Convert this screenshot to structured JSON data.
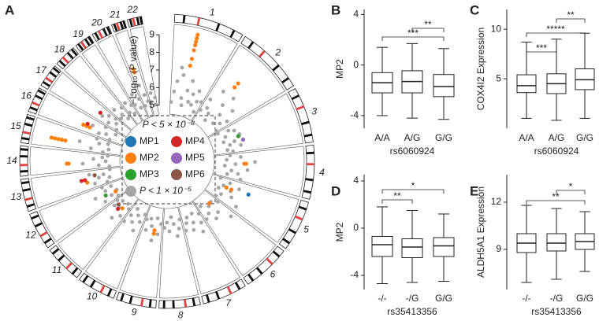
{
  "chart_data": [
    {
      "type": "circos",
      "panel": "A",
      "ylabel": "−Log₁₀ (P value)",
      "ylim": [
        4.5,
        9.5
      ],
      "yticks": [
        5,
        6,
        7,
        8,
        9
      ],
      "chromosomes": [
        "1",
        "2",
        "3",
        "4",
        "5",
        "6",
        "7",
        "8",
        "9",
        "10",
        "11",
        "12",
        "13",
        "14",
        "15",
        "16",
        "17",
        "18",
        "19",
        "20",
        "21",
        "22"
      ],
      "legend_title": "P < 5 × 10⁻⁸",
      "background": {
        "name": "P < 1 × 10⁻⁵",
        "color": "#a6a6a6",
        "values": [
          [
            5.2,
            5.8,
            6.4,
            7.2,
            6.8,
            5.5,
            5.1,
            6.0,
            6.6,
            5.4,
            5.9,
            5.3,
            6.2,
            5.6,
            5.0,
            5.7
          ],
          [
            5.3,
            6.1,
            5.6,
            6.9,
            5.4,
            5.0,
            6.3,
            7.0,
            5.8,
            5.2,
            6.5,
            5.5,
            5.9,
            5.1
          ],
          [
            5.1,
            5.7,
            6.0,
            5.4,
            6.2,
            5.2,
            5.8,
            5.5,
            6.1,
            5.3,
            5.6
          ],
          [
            5.4,
            6.0,
            5.2,
            6.8,
            5.7,
            5.1,
            6.4,
            5.5,
            5.9,
            5.3,
            6.1
          ],
          [
            5.0,
            5.6,
            6.2,
            5.3,
            5.8,
            5.1,
            6.0,
            5.4,
            6.5,
            5.2
          ],
          [
            5.5,
            6.6,
            5.2,
            5.9,
            5.3,
            6.1,
            5.6,
            5.0,
            5.8
          ],
          [
            5.3,
            5.8,
            6.3,
            5.1,
            5.6,
            6.0,
            5.2,
            5.5,
            5.9
          ],
          [
            5.2,
            5.7,
            6.1,
            5.4,
            5.0,
            5.8,
            5.3,
            5.6
          ],
          [
            5.4,
            6.0,
            5.1,
            6.4,
            5.6,
            5.2,
            5.9,
            5.3
          ],
          [
            5.1,
            5.6,
            6.2,
            5.3,
            5.8,
            5.0,
            5.5,
            6.0
          ],
          [
            5.3,
            5.9,
            5.1,
            6.3,
            5.6,
            5.2,
            5.7,
            5.4
          ],
          [
            5.2,
            6.0,
            5.5,
            5.1,
            6.4,
            5.7,
            5.3,
            5.8
          ],
          [
            5.4,
            6.1,
            5.2,
            5.8,
            5.5,
            6.3,
            5.1
          ],
          [
            5.1,
            5.7,
            6.6,
            5.3,
            6.0,
            5.5,
            5.2
          ],
          [
            5.5,
            6.2,
            5.2,
            6.9,
            5.8,
            5.3,
            6.0
          ],
          [
            5.3,
            6.0,
            5.6,
            6.5,
            5.1,
            5.8
          ],
          [
            5.2,
            5.8,
            6.3,
            5.4,
            6.0,
            5.6
          ],
          [
            5.4,
            6.0,
            5.5,
            5.1,
            5.8
          ],
          [
            5.3,
            5.9,
            5.1,
            5.6
          ],
          [
            5.5,
            6.1,
            5.2,
            5.7
          ],
          [
            5.2,
            6.4,
            5.8,
            5.4
          ],
          [
            5.3,
            5.8,
            5.1,
            5.5
          ]
        ]
      },
      "series": [
        {
          "name": "MP1",
          "color": "#1f77b4",
          "chrom": [
            "5"
          ],
          "values": [
            6.8
          ]
        },
        {
          "name": "MP2",
          "color": "#ff7f0e",
          "chrom": [
            "1",
            "1",
            "1",
            "1",
            "1",
            "1",
            "1",
            "2",
            "2",
            "4",
            "4",
            "5",
            "5",
            "6",
            "9",
            "9",
            "11",
            "12",
            "13",
            "14",
            "14",
            "15",
            "15",
            "15",
            "15",
            "15",
            "16",
            "16",
            "16",
            "21",
            "21"
          ],
          "values": [
            9.2,
            9.0,
            8.8,
            8.6,
            8.3,
            7.8,
            7.4,
            7.8,
            7.5,
            6.3,
            6.2,
            5.8,
            5.5,
            5.2,
            6.0,
            5.8,
            5.5,
            5.2,
            6.5,
            7.5,
            7.4,
            8.5,
            8.3,
            8.1,
            7.9,
            7.7,
            7.0,
            6.8,
            6.6,
            7.4,
            7.2
          ]
        },
        {
          "name": "MP3",
          "color": "#2ca02c",
          "chrom": [
            "3",
            "12"
          ],
          "values": [
            6.1,
            5.8
          ]
        },
        {
          "name": "MP4",
          "color": "#d62728",
          "chrom": [
            "11",
            "13",
            "13",
            "16",
            "17"
          ],
          "values": [
            5.7,
            6.8,
            6.6,
            6.8,
            6.5
          ]
        },
        {
          "name": "MP5",
          "color": "#9467bd",
          "chrom": [
            "3"
          ],
          "values": [
            6.3
          ]
        },
        {
          "name": "MP6",
          "color": "#8c564b",
          "chrom": [
            "11",
            "13"
          ],
          "values": [
            5.5,
            6.0
          ]
        }
      ]
    },
    {
      "type": "box",
      "panel": "B",
      "ylabel": "MP2",
      "xlabel": "rs6060924",
      "categories": [
        "A/A",
        "A/G",
        "G/G"
      ],
      "ylim": [
        -5,
        4.4
      ],
      "yticks": [
        -4,
        0,
        4
      ],
      "min": [
        -4.0,
        -4.2,
        -4.3
      ],
      "q1": [
        -2.2,
        -2.2,
        -2.5
      ],
      "median": [
        -1.4,
        -1.3,
        -1.7
      ],
      "q3": [
        -0.6,
        -0.45,
        -0.75
      ],
      "max": [
        1.4,
        1.7,
        1.3
      ],
      "brackets": [
        {
          "between": [
            "A/G",
            "G/G"
          ],
          "label": "**"
        },
        {
          "between": [
            "A/A",
            "G/G"
          ],
          "label": "***"
        }
      ]
    },
    {
      "type": "box",
      "panel": "C",
      "ylabel": "COX4I2 Expression",
      "xlabel": "rs6060924",
      "categories": [
        "A/A",
        "A/G",
        "G/G"
      ],
      "ylim": [
        0,
        12
      ],
      "yticks": [
        5,
        10
      ],
      "min": [
        1.0,
        0.8,
        1.0
      ],
      "q1": [
        3.6,
        3.5,
        3.9
      ],
      "median": [
        4.3,
        4.5,
        4.9
      ],
      "q3": [
        5.4,
        5.5,
        6.0
      ],
      "max": [
        8.7,
        9.0,
        9.6
      ],
      "brackets": [
        {
          "between": [
            "A/G",
            "G/G"
          ],
          "label": "**"
        },
        {
          "between": [
            "A/A",
            "G/G"
          ],
          "label": "*****"
        },
        {
          "between": [
            "A/A",
            "A/G"
          ],
          "label": "***"
        }
      ]
    },
    {
      "type": "box",
      "panel": "D",
      "ylabel": "MP2",
      "xlabel": "rs35413356",
      "categories": [
        "-/-",
        "-/G",
        "G/G"
      ],
      "ylim": [
        -5.2,
        4.53
      ],
      "yticks": [
        -4,
        0,
        4
      ],
      "min": [
        -4.7,
        -4.6,
        -4.5
      ],
      "q1": [
        -2.4,
        -2.5,
        -2.4
      ],
      "median": [
        -1.4,
        -1.6,
        -1.5
      ],
      "q3": [
        -0.7,
        -0.9,
        -0.8
      ],
      "max": [
        1.8,
        1.5,
        1.2
      ],
      "brackets": [
        {
          "between": [
            "-/-",
            "G/G"
          ],
          "label": "*"
        },
        {
          "between": [
            "-/-",
            "-/G"
          ],
          "label": "**"
        }
      ]
    },
    {
      "type": "box",
      "panel": "E",
      "ylabel": "ALDH5A1 Expression",
      "xlabel": "rs35413356",
      "categories": [
        "-/-",
        "-/G",
        "G/G"
      ],
      "ylim": [
        6.45,
        13.75
      ],
      "yticks": [
        9,
        12
      ],
      "min": [
        6.9,
        7.1,
        7.6
      ],
      "q1": [
        8.8,
        8.9,
        9.0
      ],
      "median": [
        9.4,
        9.4,
        9.5
      ],
      "q3": [
        10.0,
        10.0,
        10.0
      ],
      "max": [
        11.8,
        11.6,
        11.4
      ],
      "brackets": [
        {
          "between": [
            "-/G",
            "G/G"
          ],
          "label": "*"
        },
        {
          "between": [
            "-/-",
            "G/G"
          ],
          "label": "**"
        }
      ]
    }
  ]
}
